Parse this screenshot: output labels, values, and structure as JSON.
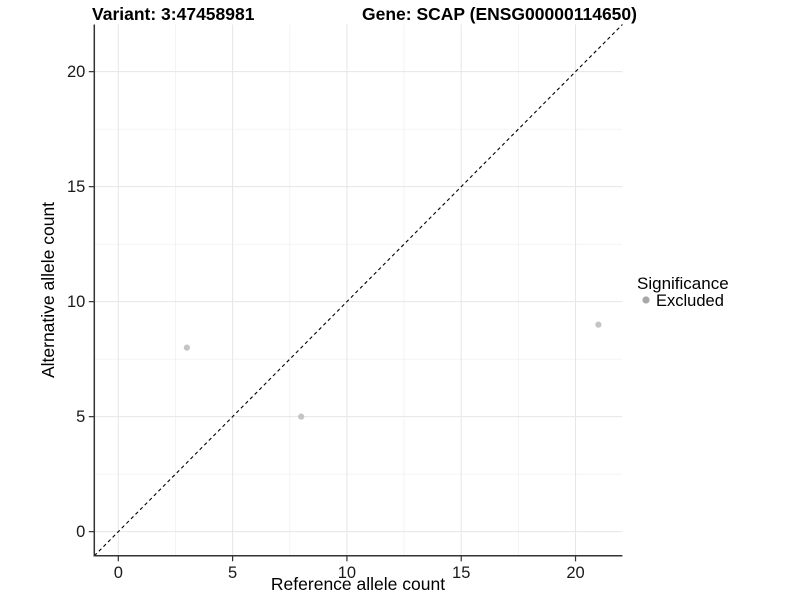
{
  "chart_data": {
    "type": "scatter",
    "title_left": "Variant: 3:47458981",
    "title_right": "Gene: SCAP (ENSG00000114650)",
    "xlabel": "Reference allele count",
    "ylabel": "Alternative allele count",
    "xlim": [
      -1.05,
      22.05
    ],
    "ylim": [
      -1.05,
      22.05
    ],
    "xticks": [
      0,
      5,
      10,
      15,
      20
    ],
    "yticks": [
      0,
      5,
      10,
      15,
      20
    ],
    "xticks_minor": [
      2.5,
      7.5,
      12.5,
      17.5
    ],
    "yticks_minor": [
      2.5,
      7.5,
      12.5,
      17.5
    ],
    "grid": "on",
    "identity_line": {
      "type": "dashed",
      "color": "#000000",
      "from": "bottom-left",
      "to": "top-right"
    },
    "series": [
      {
        "name": "Excluded",
        "color": "#c4c4c4",
        "points": [
          {
            "x": 3,
            "y": 8
          },
          {
            "x": 8,
            "y": 5
          },
          {
            "x": 21,
            "y": 9
          }
        ]
      }
    ],
    "legend": {
      "title": "Significance",
      "position": "right",
      "entries": [
        {
          "label": "Excluded",
          "color": "#a8a8a8"
        }
      ]
    },
    "colors": {
      "major_grid": "#e6e6e6",
      "minor_grid": "#f2f2f2",
      "axis_line": "#333333",
      "tick_text": "#1a1a1a"
    }
  }
}
